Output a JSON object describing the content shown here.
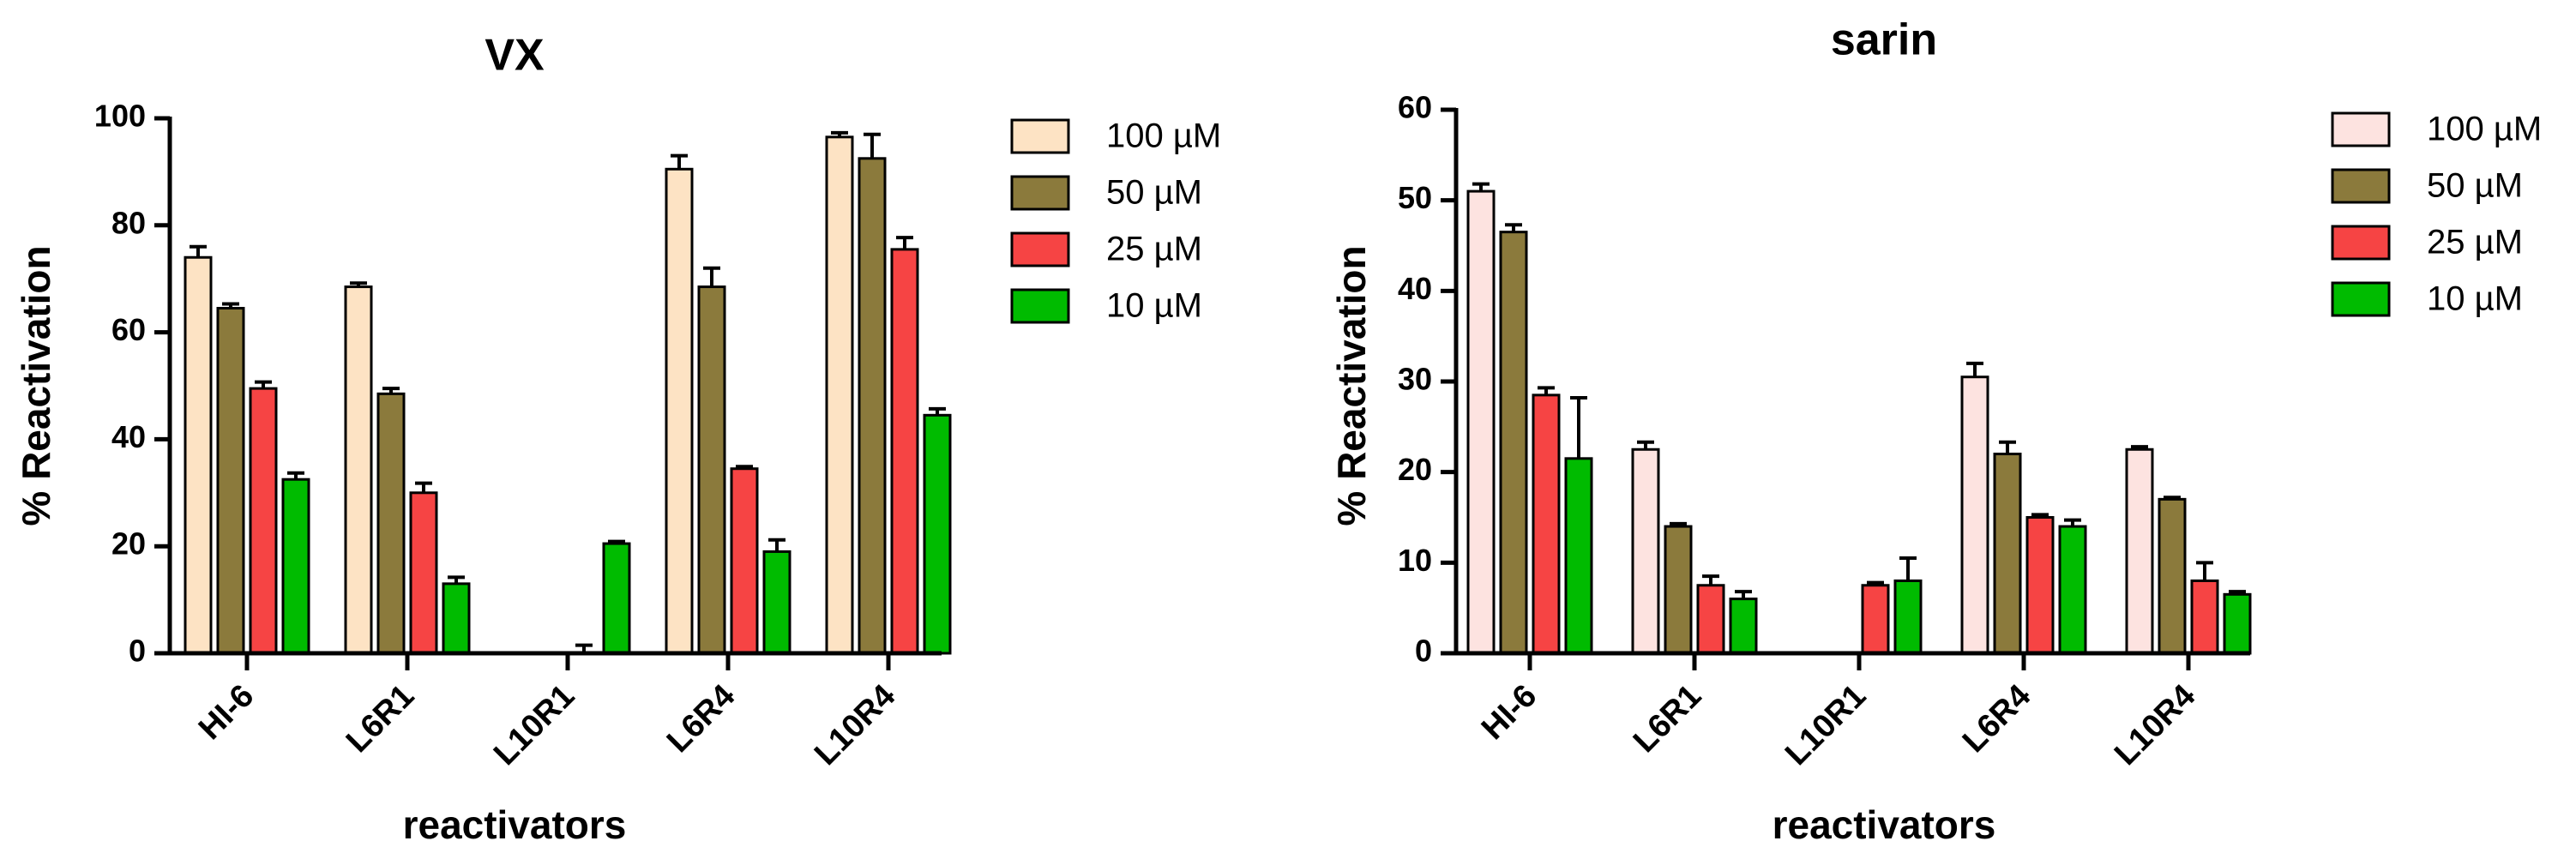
{
  "chart_data": [
    {
      "type": "bar",
      "title": "VX",
      "xlabel": "reactivators",
      "ylabel": "% Reactivation",
      "ylim": [
        0,
        100
      ],
      "yticks": [
        0,
        20,
        40,
        60,
        80,
        100
      ],
      "categories": [
        "HI-6",
        "L6R1",
        "L10R1",
        "L6R4",
        "L10R4"
      ],
      "legend_position": "right",
      "series": [
        {
          "name": "100 µM",
          "color": "#FDE3C4",
          "values": [
            74,
            68.5,
            null,
            90.5,
            96.5
          ],
          "errors": [
            2,
            0.7,
            null,
            2.5,
            0.8
          ]
        },
        {
          "name": "50 µM",
          "color": "#8B7A3C",
          "values": [
            64.5,
            48.5,
            null,
            68.5,
            92.5
          ],
          "errors": [
            0.8,
            1,
            null,
            3.5,
            4.5
          ]
        },
        {
          "name": "25 µM",
          "color": "#F64444",
          "values": [
            49.5,
            30,
            null,
            34.5,
            75.5
          ],
          "errors": [
            1.2,
            1.8,
            1.5,
            0.4,
            2.2
          ]
        },
        {
          "name": "10 µM",
          "color": "#00BB00",
          "values": [
            32.5,
            13,
            20.5,
            19,
            44.5
          ],
          "errors": [
            1.2,
            1.2,
            0.4,
            2.2,
            1.2
          ]
        }
      ],
      "missing_note_cat2_s1": null
    },
    {
      "type": "bar",
      "title": "sarin",
      "xlabel": "reactivators",
      "ylabel": "% Reactivation",
      "ylim": [
        0,
        60
      ],
      "yticks": [
        0,
        10,
        20,
        30,
        40,
        50,
        60
      ],
      "categories": [
        "HI-6",
        "L6R1",
        "L10R1",
        "L6R4",
        "L10R4"
      ],
      "legend_position": "right",
      "series": [
        {
          "name": "100 µM",
          "color": "#FDE3E0",
          "values": [
            51,
            22.5,
            null,
            30.5,
            22.5
          ],
          "errors": [
            0.8,
            0.8,
            null,
            1.5,
            0.3
          ]
        },
        {
          "name": "50 µM",
          "color": "#8B7A3C",
          "values": [
            46.5,
            14,
            null,
            22,
            17
          ],
          "errors": [
            0.8,
            0.3,
            null,
            1.3,
            0.2
          ]
        },
        {
          "name": "25 µM",
          "color": "#F64444",
          "values": [
            28.5,
            7.5,
            7.5,
            15,
            8
          ],
          "errors": [
            0.8,
            1,
            0.3,
            0.3,
            2
          ]
        },
        {
          "name": "10 µM",
          "color": "#00BB00",
          "values": [
            21.5,
            6,
            8,
            14,
            6.5
          ],
          "errors": [
            6.7,
            0.8,
            2.5,
            0.7,
            0.3
          ]
        }
      ]
    }
  ]
}
